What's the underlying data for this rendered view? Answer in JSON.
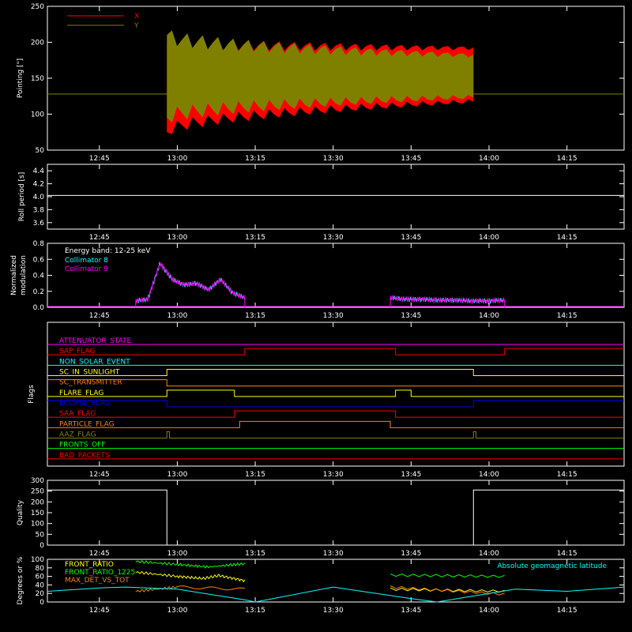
{
  "figure": {
    "background": "#000000",
    "axis_color": "#ffffff",
    "x_tick_labels": [
      "12:45",
      "13:00",
      "13:15",
      "13:30",
      "13:45",
      "14:00",
      "14:15"
    ]
  },
  "chart_data": [
    {
      "id": "pointing",
      "type": "area",
      "ylabel": "Pointing [\"]",
      "xlim": [
        "12:35",
        "14:26"
      ],
      "ylim": [
        50,
        250
      ],
      "yticks": [
        50,
        100,
        150,
        200,
        250
      ],
      "legend": [
        {
          "name": "X",
          "color": "#ff0000"
        },
        {
          "name": "Y",
          "color": "#808000"
        }
      ],
      "legend_position": "top-left",
      "series": [
        {
          "name": "X",
          "color": "#ff0000",
          "band_start": "12:58",
          "band_end": "13:57",
          "upper_start": 200,
          "upper_end": 192,
          "lower_start": 75,
          "lower_end": 118,
          "baseline": 128
        },
        {
          "name": "Y",
          "color": "#808000",
          "band_start": "12:58",
          "band_end": "13:57",
          "upper_start": 210,
          "upper_end": 182,
          "lower_start": 95,
          "lower_end": 124,
          "baseline": 128
        }
      ]
    },
    {
      "id": "roll_period",
      "type": "line",
      "ylabel": "Roll period [s]",
      "ylim": [
        3.5,
        4.5
      ],
      "yticks": [
        "3.6",
        "3.8",
        "4.0",
        "4.2",
        "4.4"
      ],
      "series": [
        {
          "name": "roll",
          "color": "#ffffff",
          "value": 4.02
        }
      ]
    },
    {
      "id": "modulation",
      "type": "line",
      "ylabel_lines": [
        "Normalized",
        "modulation"
      ],
      "ylim": [
        0,
        0.8
      ],
      "yticks": [
        "0.0",
        "0.2",
        "0.4",
        "0.6",
        "0.8"
      ],
      "annotation": "Energy band: 12-25 keV",
      "legend": [
        {
          "name": "Collimator 8",
          "color": "#00ffff"
        },
        {
          "name": "Collimator 9",
          "color": "#ff00ff"
        }
      ],
      "segments": [
        {
          "start": "12:52",
          "end": "13:13",
          "profile": [
            0.08,
            0.1,
            0.55,
            0.35,
            0.28,
            0.3,
            0.22,
            0.35,
            0.18,
            0.12
          ]
        },
        {
          "start": "13:41",
          "end": "14:03",
          "profile": [
            0.12,
            0.1,
            0.1,
            0.09,
            0.09,
            0.08,
            0.08,
            0.09
          ]
        }
      ]
    },
    {
      "id": "flags",
      "type": "line",
      "ylabel": "Flags",
      "series": [
        {
          "name": "ATTENUATOR_STATE",
          "color": "#ff00ff",
          "levels": [
            [
              "12:35",
              0
            ]
          ]
        },
        {
          "name": "SAP_FLAG",
          "color": "#ff0000",
          "levels": [
            [
              "12:35",
              0
            ],
            [
              "13:13",
              1
            ],
            [
              "13:42",
              0
            ],
            [
              "14:03",
              1
            ]
          ]
        },
        {
          "name": "NON_SOLAR_EVENT",
          "color": "#00ffff",
          "levels": [
            [
              "12:35",
              0
            ]
          ]
        },
        {
          "name": "SC_IN_SUNLIGHT",
          "color": "#ffff00",
          "levels": [
            [
              "12:35",
              0
            ],
            [
              "12:58",
              1
            ],
            [
              "13:57",
              0
            ]
          ]
        },
        {
          "name": "SC_TRANSMITTER",
          "color": "#ff8000",
          "levels": [
            [
              "12:35",
              1
            ],
            [
              "12:58",
              0
            ]
          ]
        },
        {
          "name": "FLARE_FLAG",
          "color": "#ffff00",
          "levels": [
            [
              "12:35",
              0
            ],
            [
              "12:58",
              1
            ],
            [
              "13:11",
              0
            ],
            [
              "13:42",
              1
            ],
            [
              "13:45",
              0
            ]
          ]
        },
        {
          "name": "ECLIPSE_FLAG",
          "color": "#0000ff",
          "levels": [
            [
              "12:35",
              1
            ],
            [
              "12:58",
              0
            ],
            [
              "13:57",
              1
            ]
          ]
        },
        {
          "name": "SAA_FLAG",
          "color": "#ff0000",
          "levels": [
            [
              "12:35",
              0
            ],
            [
              "13:11",
              1
            ],
            [
              "13:42",
              0
            ]
          ]
        },
        {
          "name": "PARTICLE_FLAG",
          "color": "#ff8000",
          "levels": [
            [
              "12:35",
              0
            ],
            [
              "13:12",
              1
            ],
            [
              "13:41",
              0
            ]
          ]
        },
        {
          "name": "AAZ_FLAG",
          "color": "#808000",
          "levels": [
            [
              "12:35",
              0
            ],
            [
              "12:58",
              1
            ],
            [
              "12:58.5",
              0
            ],
            [
              "13:57",
              1
            ],
            [
              "13:57.5",
              0
            ]
          ]
        },
        {
          "name": "FRONTS_OFF",
          "color": "#00ff00",
          "levels": [
            [
              "12:35",
              0
            ]
          ]
        },
        {
          "name": "BAD_PACKETS",
          "color": "#ff0000",
          "levels": [
            [
              "12:35",
              0
            ]
          ]
        }
      ]
    },
    {
      "id": "quality",
      "type": "line",
      "ylabel": "Quality",
      "ylim": [
        0,
        300
      ],
      "yticks": [
        "0",
        "50",
        "100",
        "150",
        "200",
        "250",
        "300"
      ],
      "series": [
        {
          "name": "quality",
          "color": "#ffffff",
          "levels": [
            [
              "12:35",
              255
            ],
            [
              "12:58",
              0
            ],
            [
              "13:57",
              255
            ]
          ]
        }
      ]
    },
    {
      "id": "ratios",
      "type": "line",
      "ylabel": "Degrees or %",
      "ylim": [
        0,
        100
      ],
      "yticks": [
        "0",
        "20",
        "40",
        "60",
        "80",
        "100"
      ],
      "legend": [
        {
          "name": "FRONT_RATIO",
          "color": "#ffff00"
        },
        {
          "name": "FRONT_RATIO_1225",
          "color": "#00ff00"
        },
        {
          "name": "MAX_DET_VS_TOT",
          "color": "#ff8000"
        }
      ],
      "extra_label": {
        "name": "Absolute geomagnetic latitude",
        "color": "#00ffff"
      },
      "series": [
        {
          "name": "FRONT_RATIO_1225",
          "color": "#00ff00",
          "segments": [
            [
              [
                "12:52",
                95
              ],
              [
                "13:00",
                88
              ],
              [
                "13:06",
                82
              ],
              [
                "13:13",
                90
              ]
            ],
            [
              [
                "13:41",
                63
              ],
              [
                "14:03",
                60
              ]
            ]
          ]
        },
        {
          "name": "FRONT_RATIO",
          "color": "#ffff00",
          "segments": [
            [
              [
                "12:52",
                70
              ],
              [
                "13:00",
                60
              ],
              [
                "13:05",
                55
              ],
              [
                "13:08",
                62
              ],
              [
                "13:13",
                50
              ]
            ],
            [
              [
                "13:41",
                30
              ],
              [
                "14:03",
                25
              ]
            ]
          ]
        },
        {
          "name": "MAX_DET_VS_TOT",
          "color": "#ff8000",
          "segments": [
            [
              [
                "12:52",
                25
              ],
              [
                "13:00",
                35
              ],
              [
                "13:13",
                30
              ]
            ],
            [
              [
                "13:41",
                35
              ],
              [
                "14:03",
                18
              ]
            ]
          ]
        },
        {
          "name": "Absolute geomagnetic latitude",
          "color": "#00ffff",
          "points": [
            [
              "12:35",
              25
            ],
            [
              "12:45",
              33
            ],
            [
              "12:50",
              35
            ],
            [
              "13:00",
              30
            ],
            [
              "13:13",
              5
            ],
            [
              "13:15",
              0
            ],
            [
              "13:30",
              35
            ],
            [
              "13:45",
              8
            ],
            [
              "13:50",
              0
            ],
            [
              "14:05",
              30
            ],
            [
              "14:15",
              25
            ],
            [
              "14:26",
              35
            ]
          ]
        }
      ]
    }
  ]
}
